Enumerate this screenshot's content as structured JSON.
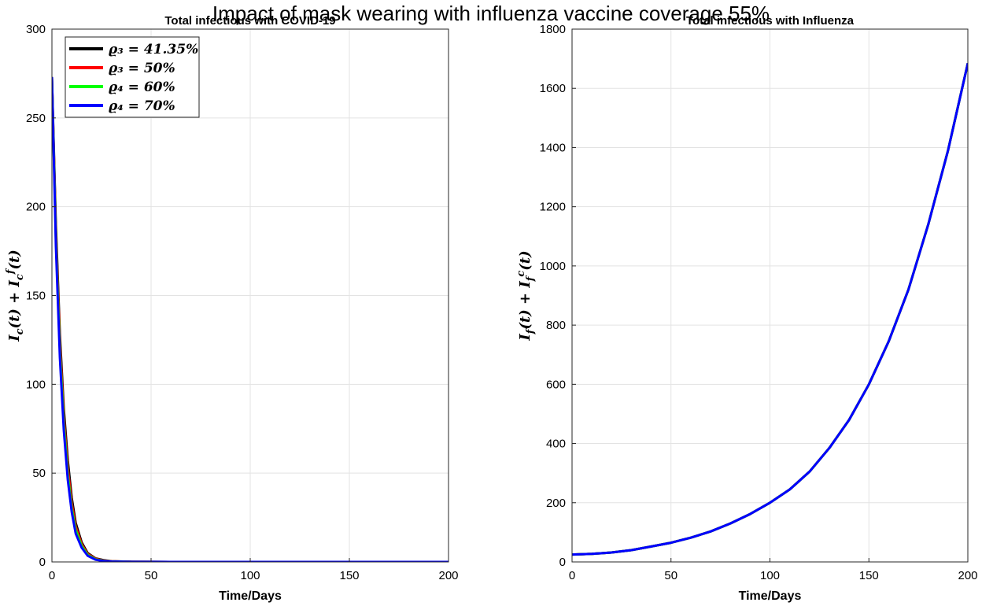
{
  "figure_title": "Impact of mask wearing with influenza vaccine coverage 55%",
  "chart_data": [
    {
      "type": "line",
      "title": "Total infectious with COVID-19",
      "xlabel": "Time/Days",
      "ylabel": "I_c(t) + I_c^f(t)",
      "xlim": [
        0,
        200
      ],
      "ylim": [
        0,
        300
      ],
      "xticks": [
        "0",
        "50",
        "100",
        "150",
        "200"
      ],
      "yticks": [
        "0",
        "50",
        "100",
        "150",
        "200",
        "250",
        "300"
      ],
      "grid": true,
      "legend_position": "top-left",
      "series": [
        {
          "name": "ϱ₃ = 41.35%",
          "color": "#000000",
          "x": [
            0,
            2,
            4,
            6,
            8,
            10,
            12,
            15,
            18,
            22,
            26,
            30,
            40,
            60,
            100,
            150,
            200
          ],
          "y": [
            273,
            190,
            128,
            86,
            57,
            36,
            22,
            11,
            5,
            2,
            1,
            0.4,
            0.1,
            0,
            0,
            0,
            0
          ]
        },
        {
          "name": "ϱ₃ = 50%",
          "color": "#ff0000",
          "x": [
            0,
            2,
            4,
            6,
            8,
            10,
            12,
            15,
            18,
            22,
            26,
            30,
            40,
            60,
            100,
            150,
            200
          ],
          "y": [
            273,
            186,
            124,
            82,
            53,
            33,
            20,
            10,
            4.5,
            1.8,
            0.8,
            0.3,
            0.1,
            0,
            0,
            0,
            0
          ]
        },
        {
          "name": "ϱ₄ = 60%",
          "color": "#00ff00",
          "x": [
            0,
            2,
            4,
            6,
            8,
            10,
            12,
            15,
            18,
            22,
            26,
            30,
            40,
            60,
            100,
            150,
            200
          ],
          "y": [
            273,
            182,
            119,
            78,
            49,
            30,
            18,
            9,
            4,
            1.5,
            0.6,
            0.2,
            0.05,
            0,
            0,
            0,
            0
          ]
        },
        {
          "name": "ϱ₄ = 70%",
          "color": "#0000ff",
          "x": [
            0,
            2,
            4,
            6,
            8,
            10,
            12,
            15,
            18,
            22,
            26,
            30,
            40,
            60,
            100,
            150,
            200
          ],
          "y": [
            273,
            178,
            115,
            74,
            46,
            28,
            16,
            8,
            3.5,
            1.3,
            0.5,
            0.2,
            0.05,
            0,
            0,
            0,
            0
          ]
        }
      ]
    },
    {
      "type": "line",
      "title": "Total infectious with Influenza",
      "xlabel": "Time/Days",
      "ylabel": "I_f(t) + I_f^c(t)",
      "xlim": [
        0,
        200
      ],
      "ylim": [
        0,
        1800
      ],
      "xticks": [
        "0",
        "50",
        "100",
        "150",
        "200"
      ],
      "yticks": [
        "0",
        "200",
        "400",
        "600",
        "800",
        "1000",
        "1200",
        "1400",
        "1600",
        "1800"
      ],
      "grid": true,
      "series": [
        {
          "name": "ϱ₃ = 41.35%",
          "color": "#000000",
          "x": [
            0,
            10,
            20,
            30,
            40,
            50,
            60,
            70,
            80,
            90,
            100,
            110,
            120,
            130,
            140,
            150,
            160,
            170,
            180,
            190,
            200
          ],
          "y": [
            25,
            27,
            32,
            40,
            52,
            65,
            82,
            103,
            130,
            162,
            200,
            245,
            305,
            385,
            480,
            600,
            745,
            920,
            1140,
            1390,
            1685
          ]
        },
        {
          "name": "ϱ₃ = 50%",
          "color": "#ff0000",
          "x": [
            0,
            10,
            20,
            30,
            40,
            50,
            60,
            70,
            80,
            90,
            100,
            110,
            120,
            130,
            140,
            150,
            160,
            170,
            180,
            190,
            200
          ],
          "y": [
            25,
            27,
            32,
            40,
            52,
            65,
            82,
            103,
            130,
            162,
            200,
            245,
            305,
            385,
            480,
            600,
            745,
            920,
            1140,
            1390,
            1685
          ]
        },
        {
          "name": "ϱ₄ = 60%",
          "color": "#00ff00",
          "x": [
            0,
            10,
            20,
            30,
            40,
            50,
            60,
            70,
            80,
            90,
            100,
            110,
            120,
            130,
            140,
            150,
            160,
            170,
            180,
            190,
            200
          ],
          "y": [
            25,
            27,
            32,
            40,
            52,
            65,
            82,
            103,
            130,
            162,
            200,
            245,
            305,
            385,
            480,
            600,
            745,
            920,
            1140,
            1390,
            1685
          ]
        },
        {
          "name": "ϱ₄ = 70%",
          "color": "#0000ff",
          "x": [
            0,
            10,
            20,
            30,
            40,
            50,
            60,
            70,
            80,
            90,
            100,
            110,
            120,
            130,
            140,
            150,
            160,
            170,
            180,
            190,
            200
          ],
          "y": [
            25,
            27,
            32,
            40,
            52,
            65,
            82,
            103,
            130,
            162,
            200,
            245,
            305,
            385,
            480,
            600,
            745,
            920,
            1140,
            1390,
            1685
          ]
        }
      ]
    }
  ]
}
